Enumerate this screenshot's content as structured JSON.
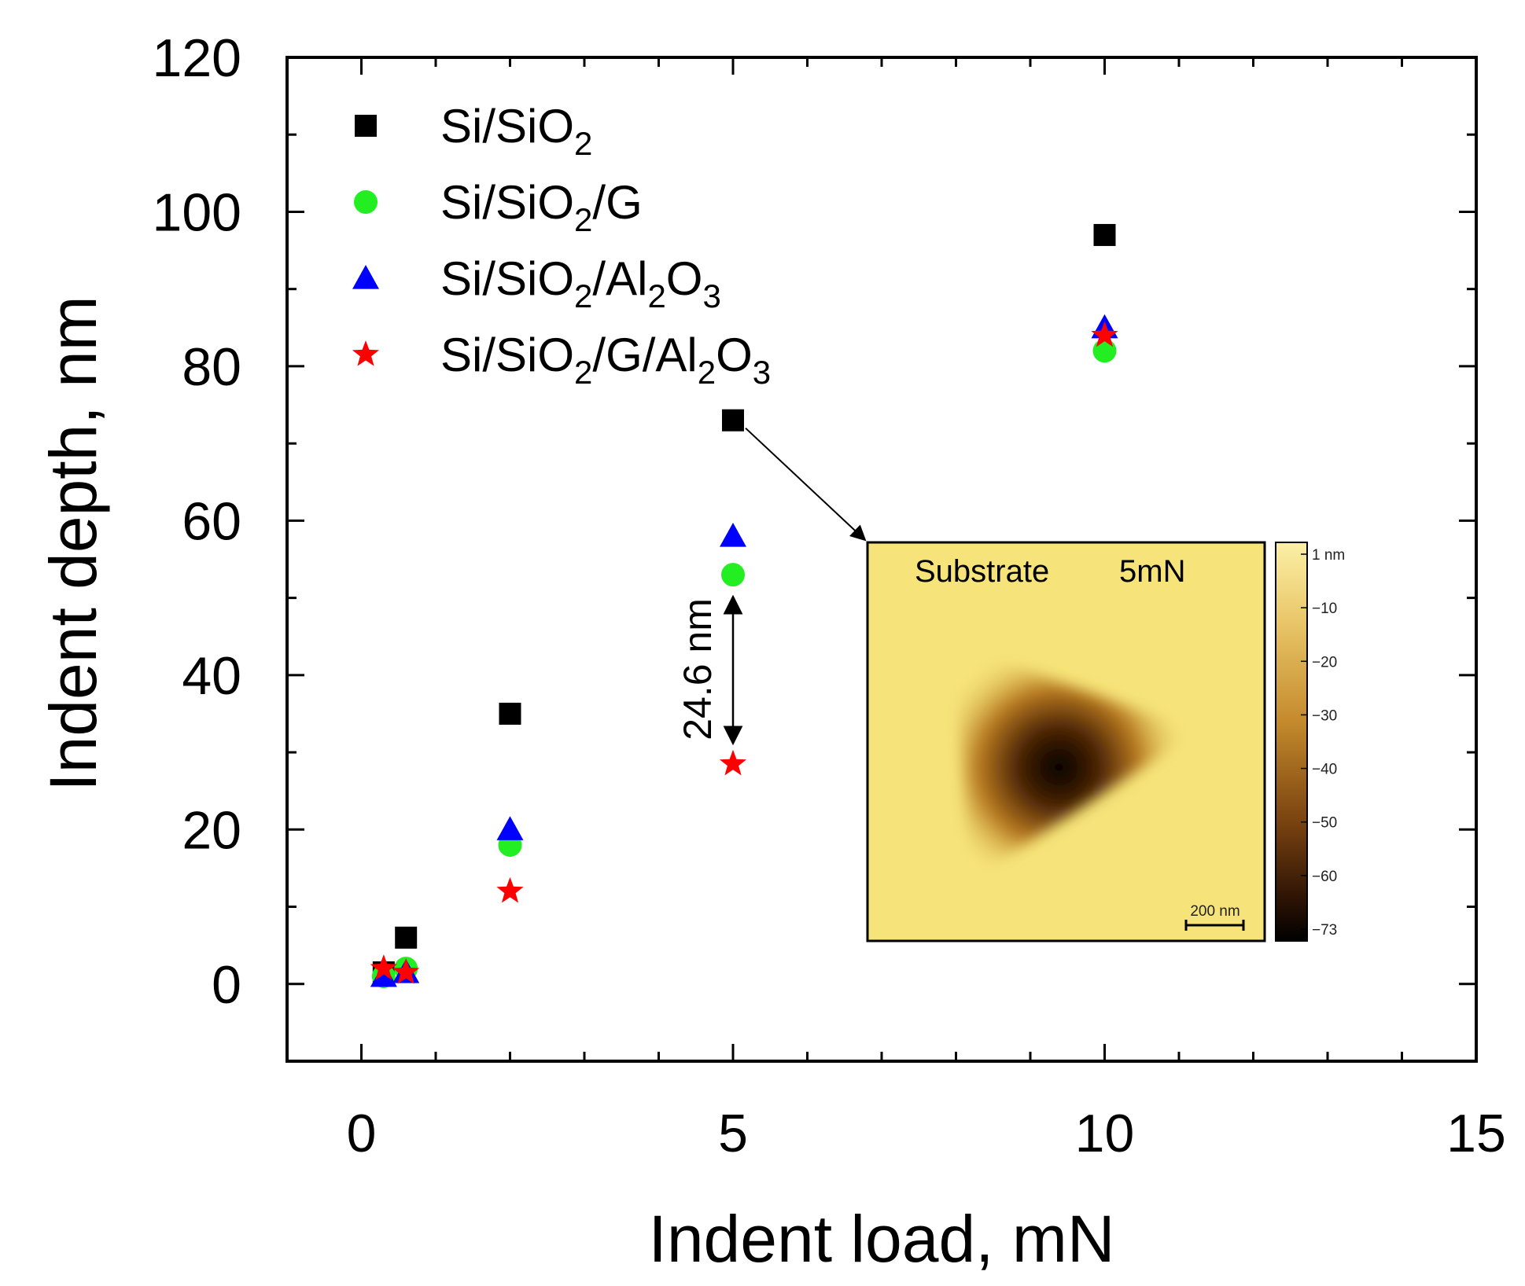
{
  "chart_data": {
    "type": "scatter",
    "title": "",
    "xlabel": "Indent load, mN",
    "ylabel": "Indent depth, nm",
    "xlim": [
      -1,
      15
    ],
    "ylim": [
      -10,
      120
    ],
    "xticks": [
      0,
      5,
      10,
      15
    ],
    "yticks": [
      0,
      20,
      40,
      60,
      80,
      100,
      120
    ],
    "grid": false,
    "legend_position": "top-left",
    "series": [
      {
        "name": "Si/SiO2",
        "label_main": "Si/SiO",
        "label_parts": [
          [
            "Si/SiO",
            false
          ],
          [
            "2",
            true
          ]
        ],
        "marker": "square",
        "color": "#000000",
        "x": [
          0.3,
          0.6,
          2.0,
          5.0,
          10.0
        ],
        "y": [
          1.5,
          6,
          35,
          73,
          97
        ]
      },
      {
        "name": "Si/SiO2/G",
        "label_parts": [
          [
            "Si/SiO",
            false
          ],
          [
            "2",
            true
          ],
          [
            "/G",
            false
          ]
        ],
        "marker": "circle",
        "color": "#22ee22",
        "x": [
          0.3,
          0.6,
          2.0,
          5.0,
          10.0
        ],
        "y": [
          1,
          2,
          18,
          53,
          82
        ]
      },
      {
        "name": "Si/SiO2/Al2O3",
        "label_parts": [
          [
            "Si/SiO",
            false
          ],
          [
            "2",
            true
          ],
          [
            "/Al",
            false
          ],
          [
            "2",
            true
          ],
          [
            "O",
            false
          ],
          [
            "3",
            true
          ]
        ],
        "marker": "triangle",
        "color": "#0000ff",
        "x": [
          0.3,
          0.6,
          2.0,
          5.0,
          10.0
        ],
        "y": [
          1,
          1.5,
          20,
          58,
          85
        ]
      },
      {
        "name": "Si/SiO2/G/Al2O3",
        "label_parts": [
          [
            "Si/SiO",
            false
          ],
          [
            "2",
            true
          ],
          [
            "/G/Al",
            false
          ],
          [
            "2",
            true
          ],
          [
            "O",
            false
          ],
          [
            "3",
            true
          ]
        ],
        "marker": "star",
        "color": "#ff0000",
        "x": [
          0.3,
          0.6,
          2.0,
          5.0,
          10.0
        ],
        "y": [
          2,
          1.5,
          12,
          28.5,
          84
        ]
      }
    ],
    "annotation": {
      "text": "24.6 nm",
      "x": 5.0,
      "y_from": 53,
      "y_to": 28.5
    },
    "inset": {
      "title_left": "Substrate",
      "title_right": "5mN",
      "scale_bar_label": "200 nm",
      "colorbar_labels": [
        "1 nm",
        "−10",
        "−20",
        "−30",
        "−40",
        "−50",
        "−60",
        "−73"
      ],
      "image_color": "#f6e47a",
      "arrow_from_point": {
        "x": 5.0,
        "y": 73
      }
    }
  }
}
